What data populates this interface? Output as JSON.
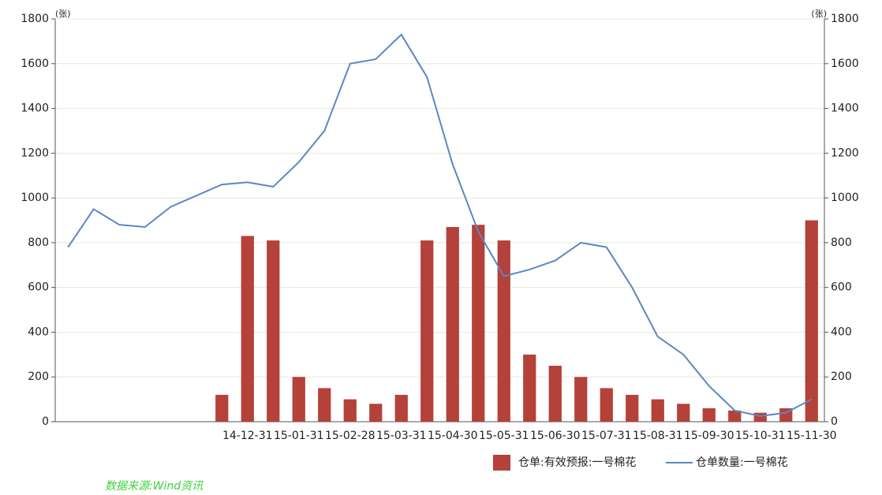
{
  "chart_data": {
    "type": "combo",
    "unit_left": "(张)",
    "unit_right": "(张)",
    "source": "数据来源:Wind资讯",
    "categories": [
      null,
      null,
      null,
      null,
      null,
      null,
      null,
      "14-12-31",
      null,
      "15-01-31",
      null,
      "15-02-28",
      null,
      "15-03-31",
      null,
      "15-04-30",
      null,
      "15-05-31",
      null,
      "15-06-30",
      null,
      "15-07-31",
      null,
      "15-08-31",
      null,
      "15-09-30",
      null,
      "15-10-31",
      null,
      "15-11-30"
    ],
    "series": [
      {
        "name": "仓单:有效预报:一号棉花",
        "type": "bar",
        "color": "#b5413b",
        "values": [
          0,
          0,
          0,
          0,
          0,
          0,
          120,
          830,
          810,
          200,
          150,
          100,
          80,
          120,
          810,
          870,
          880,
          810,
          300,
          250,
          200,
          150,
          120,
          100,
          80,
          60,
          50,
          40,
          60,
          900
        ]
      },
      {
        "name": "仓单数量:一号棉花",
        "type": "line",
        "color": "#5b87c5",
        "values": [
          780,
          950,
          880,
          870,
          960,
          1010,
          1060,
          1070,
          1050,
          1160,
          1300,
          1600,
          1620,
          1730,
          1540,
          1150,
          850,
          650,
          680,
          720,
          800,
          780,
          600,
          380,
          300,
          160,
          50,
          25,
          40,
          100
        ]
      }
    ],
    "ylim": [
      0,
      1800
    ],
    "yticks": [
      0,
      200,
      400,
      600,
      800,
      1000,
      1200,
      1400,
      1600,
      1800
    ],
    "y2lim": [
      0,
      1800
    ],
    "y2ticks": [
      0,
      200,
      400,
      600,
      800,
      1000,
      1200,
      1400,
      1600,
      1800
    ],
    "grid": true,
    "legend": "bottom-right"
  }
}
